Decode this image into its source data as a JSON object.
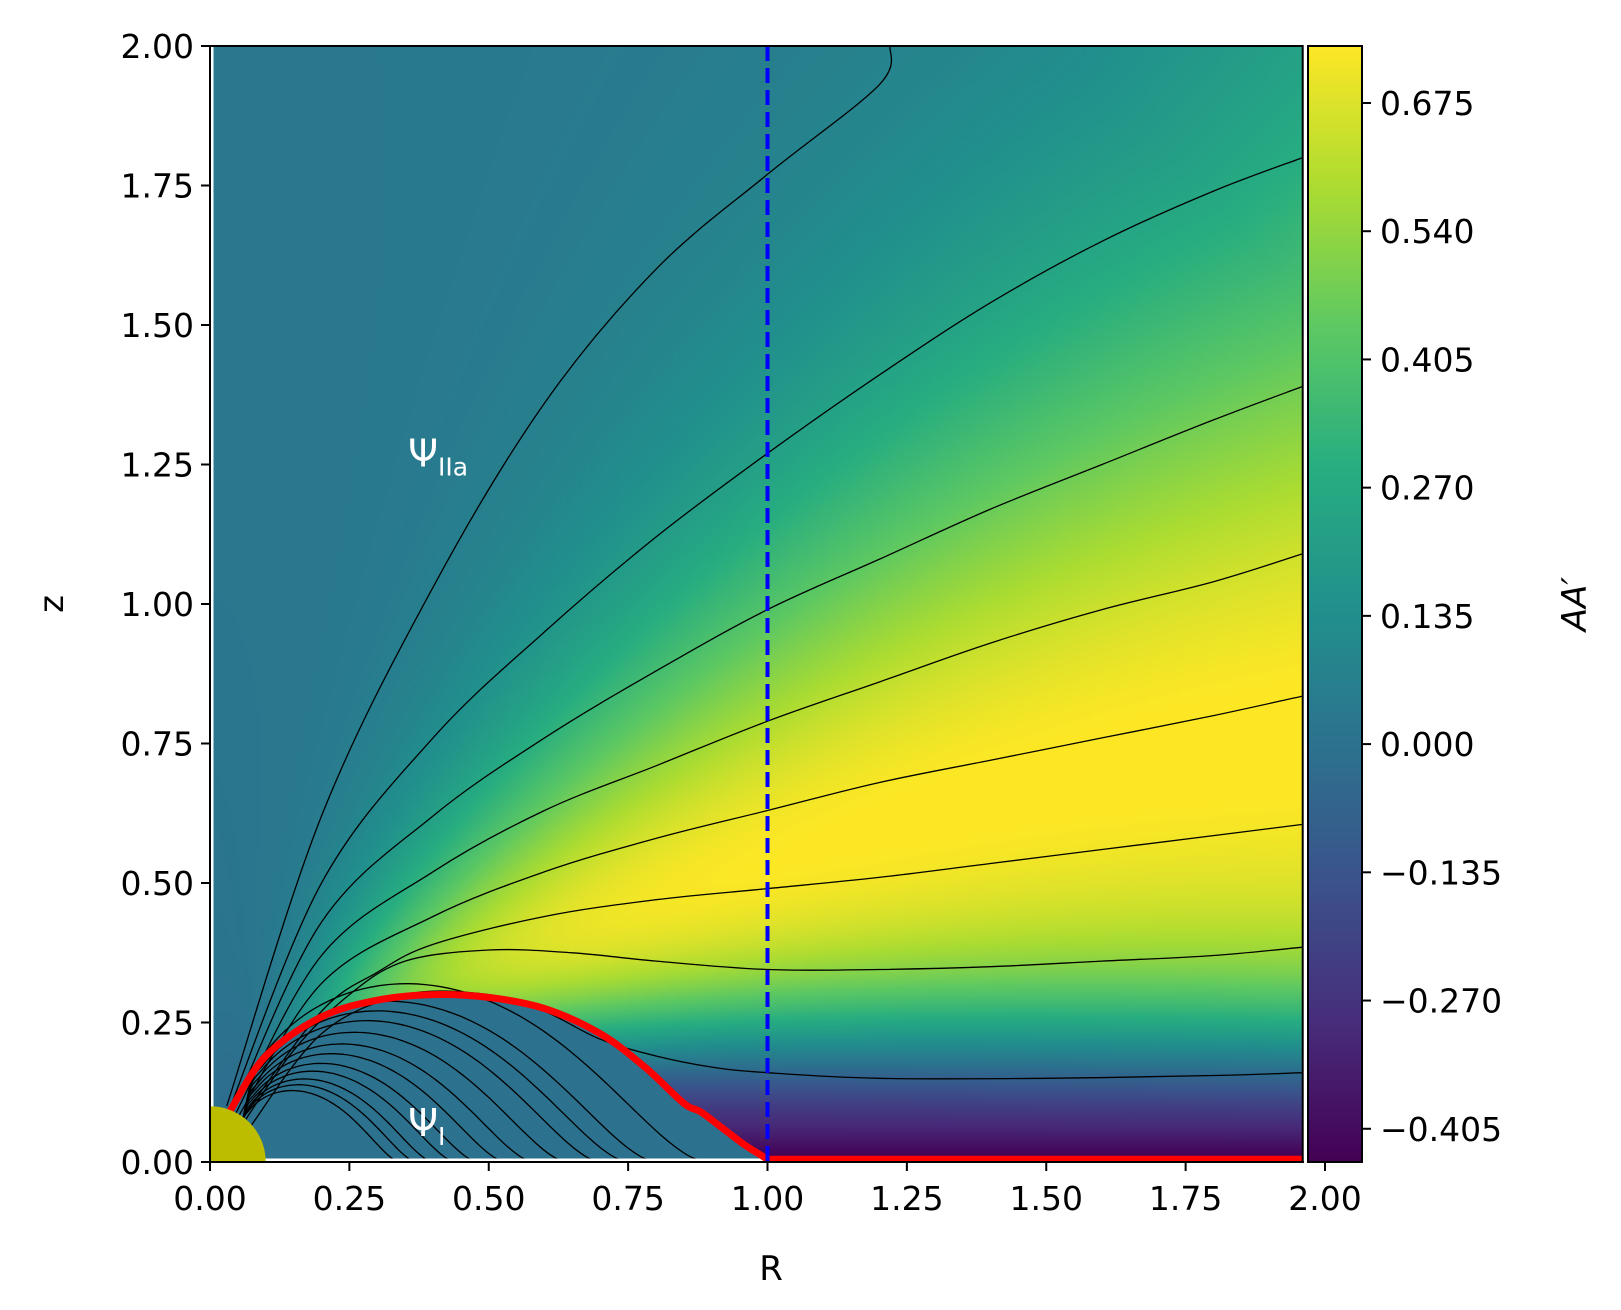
{
  "chart_data": {
    "type": "heatmap",
    "title": "",
    "xlabel": "R",
    "ylabel": "z",
    "xlim": [
      0.0,
      1.96
    ],
    "ylim": [
      0.0,
      2.0
    ],
    "x_ticks": [
      "0.00",
      "0.25",
      "0.50",
      "0.75",
      "1.00",
      "1.25",
      "1.50",
      "1.75",
      "2.00"
    ],
    "x_tick_values": [
      0.0,
      0.25,
      0.5,
      0.75,
      1.0,
      1.25,
      1.5,
      1.75,
      2.0
    ],
    "y_ticks": [
      "0.00",
      "0.25",
      "0.50",
      "0.75",
      "1.00",
      "1.25",
      "1.50",
      "1.75",
      "2.00"
    ],
    "y_tick_values": [
      0.0,
      0.25,
      0.5,
      0.75,
      1.0,
      1.25,
      1.5,
      1.75,
      2.0
    ],
    "grid": false,
    "colormap": "viridis",
    "colorbar": {
      "label": "AA′",
      "range": [
        -0.44,
        0.735
      ],
      "ticks": [
        "−0.405",
        "−0.270",
        "−0.135",
        "0.000",
        "0.135",
        "0.270",
        "0.405",
        "0.540",
        "0.675"
      ],
      "tick_values": [
        -0.405,
        -0.27,
        -0.135,
        0.0,
        0.135,
        0.27,
        0.405,
        0.54,
        0.675
      ]
    },
    "annotations": [
      {
        "text": "Ψ",
        "sub": "IIa",
        "x": 0.35,
        "y": 1.27
      },
      {
        "text": "Ψ",
        "sub": "I",
        "x": 0.35,
        "y": 0.07
      }
    ],
    "vertical_line": {
      "x": 1.0,
      "style": "dashed",
      "color": "#0000ff"
    },
    "separatrix": {
      "color": "#ff0000",
      "points": [
        [
          0.035,
          0.09
        ],
        [
          0.1,
          0.19
        ],
        [
          0.2,
          0.26
        ],
        [
          0.3,
          0.29
        ],
        [
          0.4,
          0.3
        ],
        [
          0.5,
          0.295
        ],
        [
          0.6,
          0.275
        ],
        [
          0.7,
          0.23
        ],
        [
          0.78,
          0.17
        ],
        [
          0.85,
          0.105
        ],
        [
          0.88,
          0.09
        ],
        [
          0.92,
          0.06
        ],
        [
          0.96,
          0.03
        ],
        [
          1.0,
          0.005
        ],
        [
          1.96,
          0.005
        ]
      ]
    },
    "star": {
      "radius": 0.1,
      "color": "#bdbd00"
    },
    "open_field_lines": [
      {
        "points": [
          [
            0.03,
            0.1
          ],
          [
            0.2,
            0.62
          ],
          [
            0.4,
            1.03
          ],
          [
            0.6,
            1.36
          ],
          [
            0.8,
            1.6
          ],
          [
            1.0,
            1.77
          ],
          [
            1.2,
            1.93
          ],
          [
            1.22,
            2.0
          ]
        ]
      },
      {
        "points": [
          [
            0.035,
            0.095
          ],
          [
            0.2,
            0.5
          ],
          [
            0.4,
            0.76
          ],
          [
            0.6,
            0.95
          ],
          [
            0.8,
            1.12
          ],
          [
            1.0,
            1.27
          ],
          [
            1.2,
            1.41
          ],
          [
            1.4,
            1.54
          ],
          [
            1.6,
            1.65
          ],
          [
            1.8,
            1.74
          ],
          [
            1.96,
            1.8
          ]
        ]
      },
      {
        "points": [
          [
            0.04,
            0.09
          ],
          [
            0.2,
            0.43
          ],
          [
            0.4,
            0.62
          ],
          [
            0.6,
            0.76
          ],
          [
            0.8,
            0.88
          ],
          [
            1.0,
            0.99
          ],
          [
            1.2,
            1.08
          ],
          [
            1.4,
            1.17
          ],
          [
            1.6,
            1.25
          ],
          [
            1.8,
            1.33
          ],
          [
            1.96,
            1.39
          ]
        ]
      },
      {
        "points": [
          [
            0.045,
            0.085
          ],
          [
            0.2,
            0.37
          ],
          [
            0.4,
            0.52
          ],
          [
            0.6,
            0.63
          ],
          [
            0.8,
            0.71
          ],
          [
            1.0,
            0.79
          ],
          [
            1.2,
            0.86
          ],
          [
            1.4,
            0.93
          ],
          [
            1.6,
            0.99
          ],
          [
            1.8,
            1.04
          ],
          [
            1.96,
            1.09
          ]
        ]
      },
      {
        "points": [
          [
            0.05,
            0.08
          ],
          [
            0.2,
            0.32
          ],
          [
            0.4,
            0.44
          ],
          [
            0.6,
            0.52
          ],
          [
            0.8,
            0.58
          ],
          [
            1.0,
            0.63
          ],
          [
            1.2,
            0.68
          ],
          [
            1.4,
            0.72
          ],
          [
            1.6,
            0.76
          ],
          [
            1.8,
            0.8
          ],
          [
            1.96,
            0.835
          ]
        ]
      },
      {
        "points": [
          [
            0.055,
            0.075
          ],
          [
            0.2,
            0.27
          ],
          [
            0.3,
            0.34
          ],
          [
            0.4,
            0.39
          ],
          [
            0.6,
            0.44
          ],
          [
            0.8,
            0.47
          ],
          [
            1.0,
            0.49
          ],
          [
            1.2,
            0.51
          ],
          [
            1.4,
            0.535
          ],
          [
            1.6,
            0.56
          ],
          [
            1.8,
            0.585
          ],
          [
            1.96,
            0.605
          ]
        ]
      },
      {
        "points": [
          [
            0.06,
            0.07
          ],
          [
            0.15,
            0.2
          ],
          [
            0.25,
            0.3
          ],
          [
            0.35,
            0.36
          ],
          [
            0.5,
            0.38
          ],
          [
            0.65,
            0.375
          ],
          [
            0.8,
            0.36
          ],
          [
            1.0,
            0.345
          ],
          [
            1.2,
            0.345
          ],
          [
            1.4,
            0.35
          ],
          [
            1.6,
            0.36
          ],
          [
            1.8,
            0.37
          ],
          [
            1.96,
            0.385
          ]
        ]
      },
      {
        "points": [
          [
            0.07,
            0.06
          ],
          [
            0.2,
            0.23
          ],
          [
            0.35,
            0.3
          ],
          [
            0.5,
            0.3
          ],
          [
            0.6,
            0.27
          ],
          [
            0.7,
            0.22
          ],
          [
            0.8,
            0.19
          ],
          [
            0.9,
            0.17
          ],
          [
            1.0,
            0.16
          ],
          [
            1.2,
            0.15
          ],
          [
            1.5,
            0.15
          ],
          [
            1.8,
            0.155
          ],
          [
            1.96,
            0.16
          ]
        ]
      }
    ],
    "closed_field_lines_end_R": [
      0.34,
      0.37,
      0.4,
      0.44,
      0.48,
      0.53,
      0.58,
      0.64,
      0.7,
      0.75,
      0.8,
      0.89
    ]
  }
}
